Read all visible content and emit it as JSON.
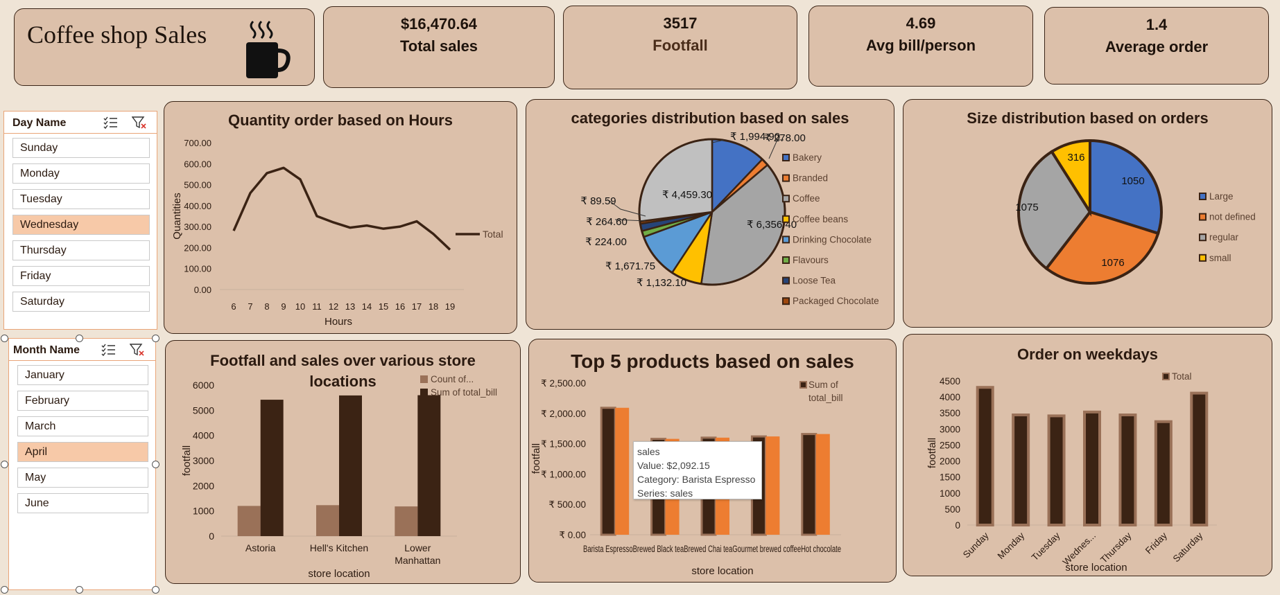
{
  "header": {
    "title": "Coffee shop Sales",
    "kpis": [
      {
        "value": "$16,470.64",
        "label": "Total sales"
      },
      {
        "value": "3517",
        "label": "Footfall"
      },
      {
        "value": "4.69",
        "label": "Avg bill/person"
      },
      {
        "value": "1.4",
        "label": "Average order"
      }
    ]
  },
  "slicers": {
    "day": {
      "title": "Day Name",
      "items": [
        "Sunday",
        "Monday",
        "Tuesday",
        "Wednesday",
        "Thursday",
        "Friday",
        "Saturday"
      ],
      "selected": "Wednesday"
    },
    "month": {
      "title": "Month Name",
      "items": [
        "January",
        "February",
        "March",
        "April",
        "May",
        "June"
      ],
      "selected": "April"
    }
  },
  "colors": {
    "dark": "#3b2314",
    "brown": "#9a7158",
    "orange": "#ed7d31",
    "blue": "#4472c4",
    "gray": "#a5a5a5",
    "yellow": "#ffc000",
    "selected": "#f7c9a8"
  },
  "chart_data": [
    {
      "type": "line",
      "title": "Quantity order based on Hours",
      "xlabel": "Hours",
      "ylabel": "Quantities",
      "x": [
        6,
        7,
        8,
        9,
        10,
        11,
        12,
        13,
        14,
        15,
        16,
        17,
        18,
        19
      ],
      "series": [
        {
          "name": "Total",
          "values": [
            280,
            460,
            555,
            580,
            525,
            350,
            320,
            295,
            305,
            290,
            300,
            325,
            265,
            190
          ]
        }
      ],
      "ylim": [
        0,
        700
      ],
      "yticks": [
        "0.00",
        "100.00",
        "200.00",
        "300.00",
        "400.00",
        "500.00",
        "600.00",
        "700.00"
      ],
      "legend": "right"
    },
    {
      "type": "pie",
      "title": "categories distribution based on sales",
      "slices": [
        {
          "name": "Bakery",
          "value": 1994.9,
          "label": "₹ 1,994.90",
          "color": "#4472c4"
        },
        {
          "name": "Branded",
          "value": 278.0,
          "label": "₹ 278.00",
          "color": "#ed7d31"
        },
        {
          "name": "Coffee",
          "value": 6356.4,
          "label": "₹ 6,356.40",
          "color": "#a5a5a5"
        },
        {
          "name": "Coffee beans",
          "value": 1132.1,
          "label": "₹ 1,132.10",
          "color": "#ffc000"
        },
        {
          "name": "Drinking Chocolate",
          "value": 1671.75,
          "label": "₹ 1,671.75",
          "color": "#5b9bd5"
        },
        {
          "name": "Flavours",
          "value": 224.0,
          "label": "₹ 224.00",
          "color": "#70ad47"
        },
        {
          "name": "Loose Tea",
          "value": 264.6,
          "label": "₹ 264.60",
          "color": "#264478"
        },
        {
          "name": "Packaged Chocolate",
          "value": 89.59,
          "label": "₹ 89.59",
          "color": "#9e480e"
        },
        {
          "name": "",
          "value": 4459.3,
          "label": "₹ 4,459.30",
          "color": "#c0c0c0"
        }
      ],
      "legend": [
        "Bakery",
        "Branded",
        "Coffee",
        "Coffee beans",
        "Drinking Chocolate",
        "Flavours",
        "Loose Tea",
        "Packaged Chocolate"
      ]
    },
    {
      "type": "pie",
      "title": "Size distribution based on orders",
      "slices": [
        {
          "name": "Large",
          "value": 1050,
          "color": "#4472c4"
        },
        {
          "name": "not defined",
          "value": 1076,
          "color": "#ed7d31"
        },
        {
          "name": "regular",
          "value": 1075,
          "color": "#a5a5a5"
        },
        {
          "name": "small",
          "value": 316,
          "color": "#ffc000"
        }
      ],
      "legend": [
        "Large",
        "not defined",
        "regular",
        "small"
      ]
    },
    {
      "type": "bar",
      "title": "Footfall and sales over various store locations",
      "xlabel": "store location",
      "ylabel": "footfall",
      "categories": [
        "Astoria",
        "Hell's Kitchen",
        "Lower Manhattan"
      ],
      "series": [
        {
          "name": "Count of...",
          "values": [
            1200,
            1230,
            1180
          ]
        },
        {
          "name": "Sum of total_bill",
          "values": [
            5420,
            5590,
            5600
          ]
        }
      ],
      "ylim": [
        0,
        6000
      ],
      "yticks": [
        "0",
        "1000",
        "2000",
        "3000",
        "4000",
        "5000",
        "6000"
      ]
    },
    {
      "type": "bar",
      "title": "Top 5 products based on sales",
      "xlabel": "store location",
      "ylabel": "footfall",
      "categories": [
        "Barista Espresso",
        "Brewed Black tea",
        "Brewed Chai tea",
        "Gourmet brewed coffee",
        "Hot chocolate"
      ],
      "category_labels_printed": "Barista EspressoBrewed Black teaBrewed Chai teaGourmet brewed coffeeHot chocolate",
      "series": [
        {
          "name": "Sum of total_bill",
          "values": [
            2092.15,
            1580,
            1600,
            1620,
            1660
          ]
        },
        {
          "name": "sales",
          "values": [
            2092.15,
            1580,
            1600,
            1620,
            1660
          ]
        }
      ],
      "ylim": [
        0,
        2500
      ],
      "yticks": [
        "₹ 0.00",
        "₹ 500.00",
        "₹ 1,000.00",
        "₹ 1,500.00",
        "₹ 2,000.00",
        "₹ 2,500.00"
      ],
      "legend_text": [
        "Sum of",
        "total_bill"
      ],
      "tooltip": [
        "sales",
        "Value: $2,092.15",
        "Category: Barista Espresso",
        "Series: sales"
      ]
    },
    {
      "type": "bar",
      "title": "Order on weekdays",
      "xlabel": "store location",
      "ylabel": "footfall",
      "categories": [
        "Sunday",
        "Monday",
        "Tuesday",
        "Wednes...",
        "Thursday",
        "Friday",
        "Saturday"
      ],
      "series": [
        {
          "name": "Total",
          "values": [
            4300,
            3440,
            3410,
            3530,
            3440,
            3230,
            4120
          ]
        }
      ],
      "ylim": [
        0,
        4500
      ],
      "yticks": [
        "0",
        "500",
        "1000",
        "1500",
        "2000",
        "2500",
        "3000",
        "3500",
        "4000",
        "4500"
      ]
    }
  ]
}
